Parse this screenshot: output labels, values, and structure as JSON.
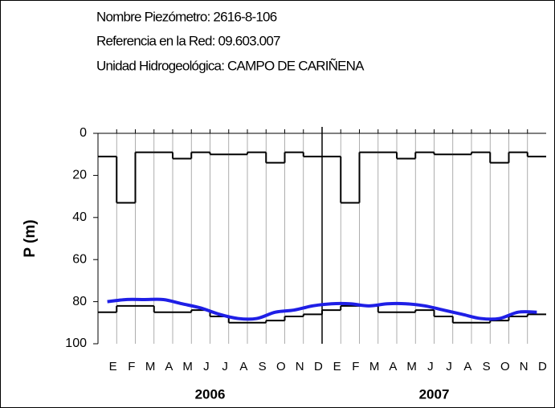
{
  "chart_data": {
    "type": "line",
    "annotations": [
      "Nombre Piezómetro:  2616-8-106",
      "Referencia en la Red:  09.603.007",
      "Unidad Hidrogeológica: CAMPO DE CARIÑENA"
    ],
    "y_label": "P (m)",
    "categories": [
      "E",
      "F",
      "M",
      "A",
      "M",
      "J",
      "J",
      "A",
      "S",
      "O",
      "N",
      "D",
      "E",
      "F",
      "M",
      "A",
      "M",
      "J",
      "J",
      "A",
      "S",
      "O",
      "N",
      "D"
    ],
    "year_labels": [
      "2006",
      "2007"
    ],
    "ylim": [
      0,
      100
    ],
    "yticks": [
      0,
      20,
      40,
      60,
      80,
      100
    ],
    "y_inverted": true,
    "grid": true,
    "series": [
      {
        "color": "#000000",
        "style": "step",
        "values": [
          11,
          33,
          9,
          9,
          12,
          9,
          10,
          10,
          9,
          14,
          9,
          11,
          11,
          33,
          9,
          9,
          12,
          9,
          10,
          10,
          9,
          14,
          9,
          11
        ]
      },
      {
        "color": "#000000",
        "style": "step",
        "values": [
          85,
          82,
          82,
          85,
          85,
          84,
          87,
          90,
          90,
          89,
          87,
          86,
          84,
          82,
          82,
          85,
          85,
          84,
          87,
          90,
          90,
          89,
          87,
          86
        ]
      },
      {
        "color": "#1f1fe6",
        "style": "smooth",
        "values": [
          80,
          79,
          79,
          79,
          81,
          83,
          86,
          88,
          88,
          85,
          84,
          82,
          81,
          81,
          82,
          81,
          81,
          82,
          84,
          86,
          88,
          88,
          85,
          85
        ]
      }
    ]
  }
}
